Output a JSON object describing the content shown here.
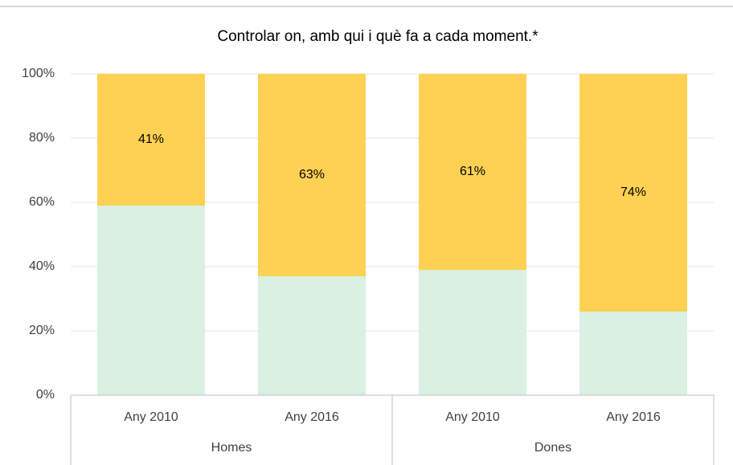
{
  "chart_data": {
    "type": "stacked_bar",
    "title": "Controlar on, amb qui i què fa a cada moment.*",
    "groups": [
      {
        "label": "Homes",
        "categories": [
          "Any 2010",
          "Any 2016"
        ]
      },
      {
        "label": "Dones",
        "categories": [
          "Any 2010",
          "Any 2016"
        ]
      }
    ],
    "series": [
      {
        "color": "#d9f0e3",
        "values": [
          59,
          37,
          39,
          26
        ]
      },
      {
        "color": "#fed152",
        "values": [
          41,
          63,
          61,
          74
        ],
        "value_labels": [
          "41%",
          "63%",
          "61%",
          "74%"
        ]
      }
    ],
    "ylim": [
      0,
      100
    ],
    "yticks": [
      {
        "value": 0,
        "label": "0%"
      },
      {
        "value": 20,
        "label": "20%"
      },
      {
        "value": 40,
        "label": "40%"
      },
      {
        "value": 60,
        "label": "60%"
      },
      {
        "value": 80,
        "label": "80%"
      },
      {
        "value": 100,
        "label": "100%"
      }
    ],
    "grid": true
  }
}
